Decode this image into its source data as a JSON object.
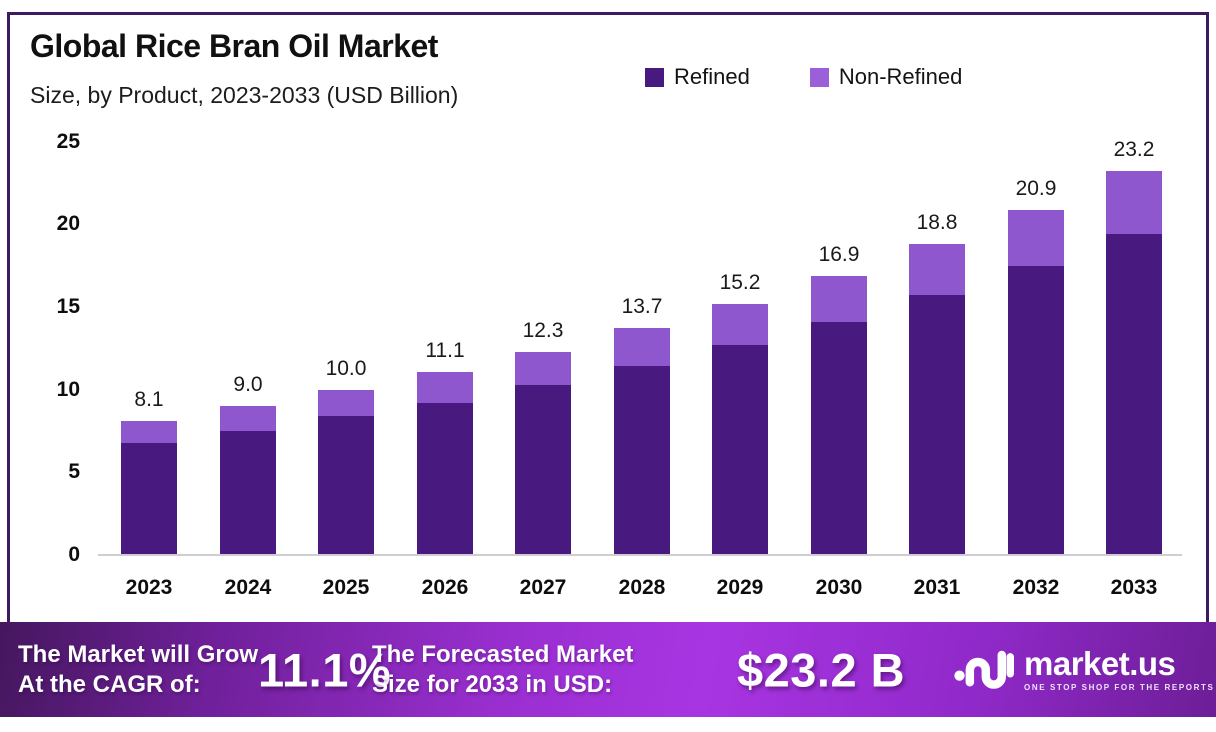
{
  "title": "Global Rice Bran Oil Market",
  "subtitle": "Size, by Product, 2023-2033 (USD Billion)",
  "colors": {
    "refined": "#481a80",
    "non_refined": "#8f57cd",
    "frame_border": "#3d1b63",
    "banner_gradient_mid": "#a535d8",
    "axis_line": "#cfccd4"
  },
  "legend": [
    {
      "label": "Refined",
      "color": "#481a80"
    },
    {
      "label": "Non-Refined",
      "color": "#9a5fd9"
    }
  ],
  "chart_data": {
    "type": "bar",
    "stacked": true,
    "title": "Global Rice Bran Oil Market Size, by Product, 2023-2033 (USD Billion)",
    "categories": [
      "2023",
      "2024",
      "2025",
      "2026",
      "2027",
      "2028",
      "2029",
      "2030",
      "2031",
      "2032",
      "2033"
    ],
    "series": [
      {
        "name": "Refined",
        "color": "#481a80",
        "values": [
          6.8,
          7.5,
          8.4,
          9.2,
          10.3,
          11.4,
          12.7,
          14.1,
          15.7,
          17.5,
          19.4
        ]
      },
      {
        "name": "Non-Refined",
        "color": "#8f57cd",
        "values": [
          1.3,
          1.5,
          1.6,
          1.9,
          2.0,
          2.3,
          2.5,
          2.8,
          3.1,
          3.4,
          3.8
        ]
      }
    ],
    "totals": [
      8.1,
      9.0,
      10.0,
      11.1,
      12.3,
      13.7,
      15.2,
      16.9,
      18.8,
      20.9,
      23.2
    ],
    "total_labels": [
      "8.1",
      "9.0",
      "10.0",
      "11.1",
      "12.3",
      "13.7",
      "15.2",
      "16.9",
      "18.8",
      "20.9",
      "23.2"
    ],
    "xlabel": "",
    "ylabel": "",
    "ylim": [
      0,
      25
    ],
    "yticks": [
      0,
      5,
      10,
      15,
      20,
      25
    ],
    "grid": false,
    "legend_position": "top-right"
  },
  "banner": {
    "cagr_label_line1": "The Market will Grow",
    "cagr_label_line2": "At the CAGR of:",
    "cagr_value": "11.1%",
    "forecast_label_line1": "The Forecasted Market",
    "forecast_label_line2": "Size for 2033 in USD:",
    "forecast_value": "$23.2 B",
    "logo_text": "market.us",
    "logo_tagline": "ONE STOP SHOP FOR THE REPORTS"
  }
}
